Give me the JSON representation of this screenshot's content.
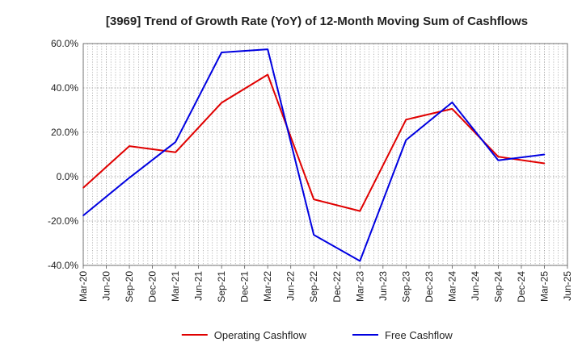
{
  "chart_data": {
    "type": "line",
    "title": "[3969]  Trend of Growth Rate (YoY) of 12-Month Moving Sum of Cashflows",
    "xlabel": "",
    "ylabel": "",
    "categories": [
      "Mar-20",
      "Jun-20",
      "Sep-20",
      "Dec-20",
      "Mar-21",
      "Jun-21",
      "Sep-21",
      "Dec-21",
      "Mar-22",
      "Jun-22",
      "Sep-22",
      "Dec-22",
      "Mar-23",
      "Jun-23",
      "Sep-23",
      "Dec-23",
      "Mar-24",
      "Jun-24",
      "Sep-24",
      "Dec-24",
      "Mar-25",
      "Jun-25"
    ],
    "ylim": [
      -40,
      60
    ],
    "yticks": [
      60,
      40,
      20,
      0,
      -20,
      -40
    ],
    "ytick_labels": [
      "60.0%",
      "40.0%",
      "20.0%",
      "0.0%",
      "-20.0%",
      "-40.0%"
    ],
    "grid": true,
    "legend_position": "bottom",
    "series": [
      {
        "name": "Operating Cashflow",
        "color": "#e00000",
        "values": [
          -5.0,
          null,
          13.8,
          null,
          11.0,
          null,
          33.3,
          null,
          46.0,
          null,
          -10.2,
          null,
          -15.5,
          null,
          25.7,
          null,
          30.6,
          null,
          9.0,
          null,
          6.0,
          null
        ]
      },
      {
        "name": "Free Cashflow",
        "color": "#0000e0",
        "values": [
          -17.5,
          null,
          -0.5,
          null,
          15.6,
          null,
          56.0,
          null,
          57.4,
          null,
          -26.2,
          null,
          -38.0,
          null,
          16.5,
          null,
          33.5,
          null,
          7.4,
          null,
          10.0,
          null
        ]
      }
    ]
  }
}
